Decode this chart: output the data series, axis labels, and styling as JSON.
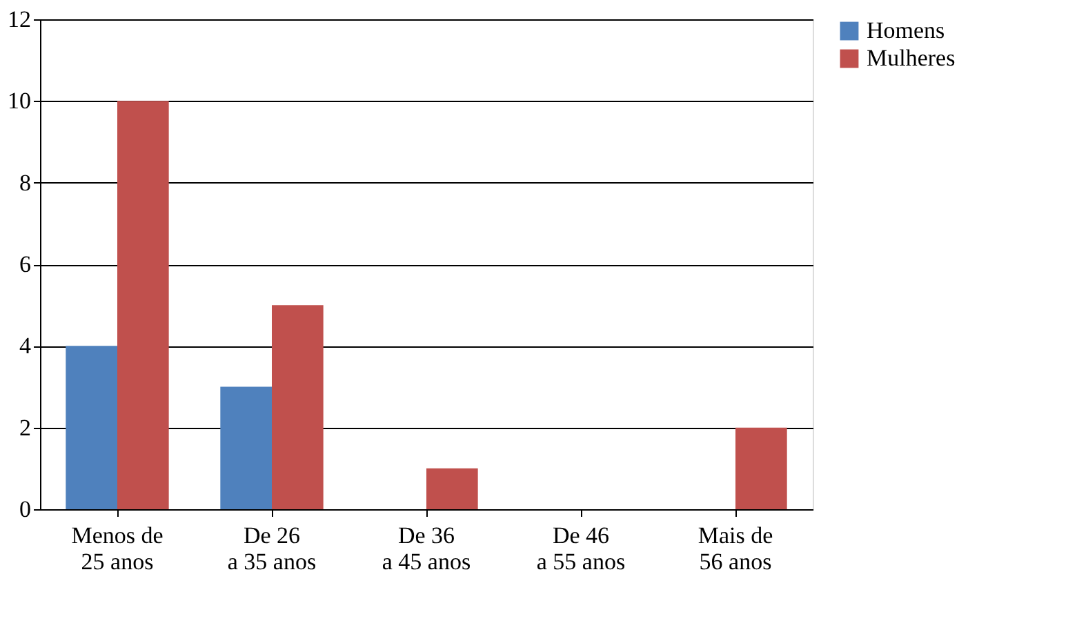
{
  "chart_data": {
    "type": "bar",
    "categories": [
      "Menos de 25 anos",
      "De 26 a 35 anos",
      "De 36 a 45 anos",
      "De 46 a 55 anos",
      "Mais de 56 anos"
    ],
    "series": [
      {
        "name": "Homens",
        "color": "#4f81bd",
        "values": [
          4,
          3,
          0,
          0,
          0
        ]
      },
      {
        "name": "Mulheres",
        "color": "#c0504d",
        "values": [
          10,
          5,
          1,
          0,
          2
        ]
      }
    ],
    "ylim": [
      0,
      12
    ],
    "yticks": [
      0,
      2,
      4,
      6,
      8,
      10,
      12
    ],
    "grid": "y",
    "legend": "right"
  }
}
